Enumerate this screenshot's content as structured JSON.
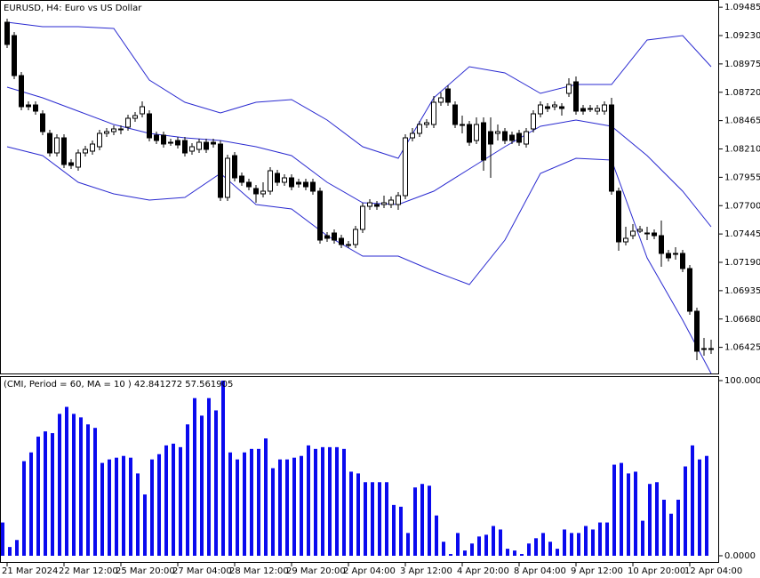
{
  "chart_data": [
    {
      "type": "candlestick",
      "title": "EURUSD, H4:  Euro vs US Dollar",
      "categories": [
        "21 Mar 2024",
        null,
        null,
        null,
        null,
        null,
        null,
        null,
        "22 Mar 12:00",
        null,
        null,
        null,
        null,
        null,
        null,
        null,
        "25 Mar 20:00",
        null,
        null,
        null,
        null,
        null,
        null,
        null,
        "27 Mar 04:00",
        null,
        null,
        null,
        null,
        null,
        null,
        null,
        "28 Mar 12:00",
        null,
        null,
        null,
        null,
        null,
        null,
        null,
        "29 Mar 20:00",
        null,
        null,
        null,
        null,
        null,
        null,
        null,
        "2 Apr 04:00",
        null,
        null,
        null,
        null,
        null,
        null,
        null,
        "3 Apr 12:00",
        null,
        null,
        null,
        null,
        null,
        null,
        null,
        "4 Apr 20:00",
        null,
        null,
        null,
        null,
        null,
        null,
        null,
        "8 Apr 04:00",
        null,
        null,
        null,
        null,
        null,
        null,
        null,
        "9 Apr 12:00",
        null,
        null,
        null,
        null,
        null,
        null,
        null,
        "10 Apr 20:00",
        null,
        null,
        null,
        null,
        null,
        null,
        null,
        "12 Apr 04:00",
        null,
        null,
        null
      ],
      "open": [
        1.0935,
        1.0923,
        1.0887,
        1.08606,
        1.08606,
        1.08526,
        1.0835,
        1.08174,
        1.0831,
        1.08086,
        1.08046,
        1.08174,
        1.0819,
        1.0823,
        1.0835,
        1.08366,
        1.08382,
        1.08406,
        1.08486,
        1.08526,
        1.08526,
        1.08334,
        1.08334,
        1.0827,
        1.08286,
        1.08286,
        1.0819,
        1.08206,
        1.0827,
        1.0827,
        1.08254,
        1.07774,
        1.0815,
        1.07966,
        1.0791,
        1.07854,
        1.07806,
        1.0783,
        1.0799,
        1.0791,
        1.0795,
        1.0791,
        1.0791,
        1.0791,
        1.0783,
        1.0743,
        1.07454,
        1.07406,
        1.0735,
        1.0735,
        1.07486,
        1.07694,
        1.0771,
        1.0771,
        1.0771,
        1.0771,
        1.0779,
        1.0831,
        1.0835,
        1.0843,
        1.0843,
        1.0863,
        1.0875,
        1.08606,
        1.0843,
        1.0843,
        1.08286,
        1.08446,
        1.08366,
        1.0835,
        1.08366,
        1.08334,
        1.0835,
        1.08254,
        1.0839,
        1.08526,
        1.0859,
        1.0859,
        1.0859,
        1.0871,
        1.08814,
        1.08574,
        1.08574,
        1.0855,
        1.0855,
        1.08606,
        1.0783,
        1.07374,
        1.0743,
        1.0747,
        1.07454,
        1.07454,
        1.0743,
        1.0727,
        1.0727,
        1.0727,
        1.07134,
        1.0675,
        1.06414,
        1.06414
      ],
      "high": [
        1.09382,
        1.09262,
        1.08902,
        1.08638,
        1.08638,
        1.08558,
        1.08382,
        1.08342,
        1.08342,
        1.08118,
        1.08206,
        1.08238,
        1.08286,
        1.08382,
        1.08398,
        1.08422,
        1.08422,
        1.08518,
        1.08542,
        1.08638,
        1.08558,
        1.08366,
        1.08366,
        1.08302,
        1.08318,
        1.08318,
        1.08262,
        1.08302,
        1.08302,
        1.08302,
        1.08286,
        1.08158,
        1.08182,
        1.07998,
        1.07942,
        1.07886,
        1.0791,
        1.08046,
        1.08022,
        1.07982,
        1.07982,
        1.07942,
        1.07942,
        1.07942,
        1.07862,
        1.07462,
        1.07486,
        1.07438,
        1.07382,
        1.07518,
        1.07726,
        1.07758,
        1.07742,
        1.0779,
        1.07782,
        1.07822,
        1.08342,
        1.08398,
        1.08462,
        1.08478,
        1.08686,
        1.08718,
        1.08782,
        1.08638,
        1.0851,
        1.08462,
        1.08494,
        1.08494,
        1.08494,
        1.0843,
        1.08398,
        1.08366,
        1.08382,
        1.08398,
        1.08558,
        1.08638,
        1.08622,
        1.08638,
        1.08622,
        1.08846,
        1.08862,
        1.08606,
        1.08606,
        1.08606,
        1.08638,
        1.0867,
        1.07862,
        1.0751,
        1.07534,
        1.07518,
        1.0751,
        1.07486,
        1.07566,
        1.07302,
        1.07326,
        1.07302,
        1.07166,
        1.06782,
        1.0651,
        1.06494
      ],
      "low": [
        1.09118,
        1.08838,
        1.08558,
        1.08558,
        1.08518,
        1.08334,
        1.08142,
        1.08142,
        1.08038,
        1.0803,
        1.08014,
        1.08142,
        1.08158,
        1.08198,
        1.08318,
        1.08334,
        1.08342,
        1.08374,
        1.08454,
        1.08494,
        1.08278,
        1.08254,
        1.08222,
        1.08238,
        1.08214,
        1.08142,
        1.08158,
        1.08174,
        1.08174,
        1.08222,
        1.07742,
        1.07742,
        1.07918,
        1.07878,
        1.07838,
        1.07726,
        1.07774,
        1.07798,
        1.07878,
        1.07878,
        1.07838,
        1.07862,
        1.07838,
        1.07798,
        1.07358,
        1.07374,
        1.07358,
        1.07318,
        1.07318,
        1.07318,
        1.07454,
        1.07662,
        1.07662,
        1.07678,
        1.07678,
        1.07662,
        1.07758,
        1.08278,
        1.08318,
        1.08398,
        1.08398,
        1.08598,
        1.08598,
        1.08398,
        1.0835,
        1.08238,
        1.08254,
        1.08014,
        1.0795,
        1.08286,
        1.08254,
        1.08254,
        1.08238,
        1.08222,
        1.08358,
        1.08494,
        1.08542,
        1.08558,
        1.0851,
        1.08678,
        1.08518,
        1.08518,
        1.08542,
        1.08518,
        1.08518,
        1.07798,
        1.07294,
        1.07342,
        1.07398,
        1.07454,
        1.0739,
        1.07398,
        1.0715,
        1.07198,
        1.07214,
        1.07102,
        1.06718,
        1.0631,
        1.0635,
        1.06366
      ],
      "close": [
        1.0915,
        1.0887,
        1.0859,
        1.0859,
        1.0855,
        1.08366,
        1.08174,
        1.0831,
        1.0807,
        1.08062,
        1.08174,
        1.08206,
        1.08254,
        1.0835,
        1.08366,
        1.0839,
        1.0839,
        1.08486,
        1.0851,
        1.0859,
        1.0831,
        1.08286,
        1.08254,
        1.0827,
        1.08246,
        1.08174,
        1.0823,
        1.0827,
        1.08206,
        1.08254,
        1.07774,
        1.08126,
        1.0795,
        1.0791,
        1.0787,
        1.07806,
        1.0783,
        1.08014,
        1.0791,
        1.0795,
        1.0787,
        1.07894,
        1.0787,
        1.0783,
        1.0739,
        1.07406,
        1.0739,
        1.0735,
        1.0735,
        1.07486,
        1.07694,
        1.07726,
        1.07694,
        1.07726,
        1.0775,
        1.0779,
        1.0831,
        1.0835,
        1.0843,
        1.08446,
        1.0863,
        1.0867,
        1.0863,
        1.0843,
        1.0843,
        1.0827,
        1.0843,
        1.0811,
        1.08254,
        1.08366,
        1.08286,
        1.08286,
        1.0827,
        1.08366,
        1.08526,
        1.08606,
        1.08574,
        1.08606,
        1.08574,
        1.0879,
        1.0855,
        1.0855,
        1.08574,
        1.08574,
        1.08606,
        1.0783,
        1.07374,
        1.07406,
        1.0747,
        1.07486,
        1.07454,
        1.0743,
        1.0727,
        1.0723,
        1.0727,
        1.07134,
        1.0675,
        1.0639,
        1.06414,
        1.06414
      ],
      "up_color": "#ffffff",
      "down_color": "#000000",
      "outline_color": "#000000",
      "ylim": [
        1.0619,
        1.0955
      ],
      "yticks": [
        1.09485,
        {
          "value": 1.0923,
          "label": "1.09230"
        },
        1.08975,
        {
          "value": 1.0872,
          "label": "1.08720"
        },
        1.08465,
        {
          "value": 1.0821,
          "label": "1.08210"
        },
        1.07955,
        {
          "value": 1.077,
          "label": "1.07700"
        },
        1.07445,
        {
          "value": 1.0719,
          "label": "1.07190"
        },
        1.06935,
        {
          "value": 1.0668,
          "label": "1.06680"
        },
        1.06425
      ],
      "bands": {
        "x": [
          0,
          5,
          10,
          15,
          20,
          25,
          30,
          35,
          40,
          45,
          50,
          55,
          60,
          65,
          70,
          75,
          80,
          85,
          90,
          95,
          99
        ],
        "color": "#2a2ad0",
        "series": [
          {
            "values": [
              1.0935,
              1.0931,
              1.0931,
              1.09294,
              1.0883,
              1.0863,
              1.08534,
              1.0863,
              1.08654,
              1.0847,
              1.0823,
              1.08126,
              1.0867,
              1.0895,
              1.08894,
              1.0871,
              1.0879,
              1.0879,
              1.0919,
              1.0923,
              1.0895
            ]
          },
          {
            "values": [
              1.08766,
              1.0867,
              1.0855,
              1.0843,
              1.0835,
              1.0831,
              1.08286,
              1.0823,
              1.0815,
              1.0791,
              1.07726,
              1.0771,
              1.0783,
              1.0803,
              1.0823,
              1.08414,
              1.0847,
              1.08414,
              1.0815,
              1.0783,
              1.0751
            ]
          },
          {
            "values": [
              1.0823,
              1.0815,
              1.0791,
              1.07806,
              1.0775,
              1.07774,
              1.0799,
              1.0771,
              1.0767,
              1.0743,
              1.07246,
              1.07246,
              1.0711,
              1.0699,
              1.0739,
              1.0799,
              1.08126,
              1.0811,
              1.0723,
              1.0667,
              1.0619
            ]
          }
        ]
      }
    },
    {
      "type": "bar",
      "title": "(CMI, Period = 60, MA = 10 ) 42.841272 57.561905",
      "values": [
        19,
        5,
        9,
        54,
        59,
        68,
        71,
        70,
        81,
        85,
        81,
        79,
        75,
        73,
        53,
        55,
        56,
        57,
        56,
        47,
        35,
        55,
        58,
        63,
        64,
        62,
        75,
        90,
        80,
        90,
        83,
        100,
        59,
        55,
        59,
        61,
        61,
        67,
        50,
        55,
        55,
        56,
        57,
        63,
        61,
        62,
        62,
        62,
        61,
        48,
        47,
        42,
        42,
        42,
        42,
        29,
        28,
        13,
        39,
        41,
        40,
        23,
        8,
        1,
        13,
        3,
        7,
        11,
        12,
        17,
        15,
        4,
        3,
        1,
        7,
        10,
        13,
        8,
        4,
        15,
        13,
        13,
        17,
        15,
        19,
        19,
        52,
        53,
        47,
        48,
        20,
        41,
        42,
        32,
        24,
        32,
        51,
        63,
        55,
        57
      ],
      "color": "#0a0aee",
      "ylim": [
        0,
        100
      ],
      "yticks": [
        {
          "value": 0,
          "label": "0.0000"
        },
        {
          "value": 100,
          "label": "100.0000"
        }
      ]
    }
  ]
}
